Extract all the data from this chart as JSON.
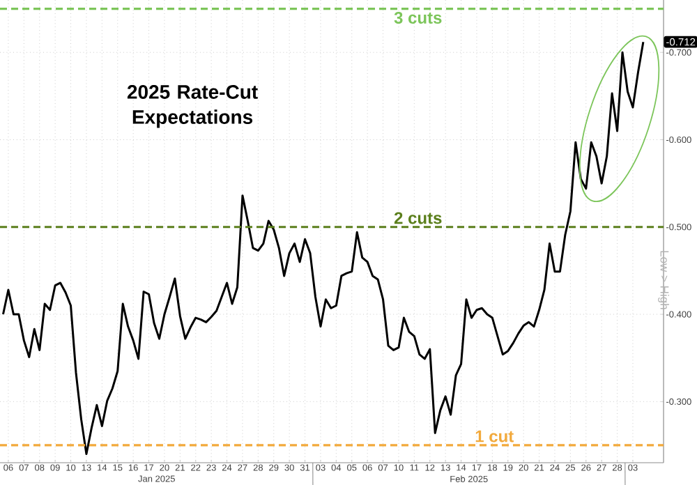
{
  "chart_data": {
    "type": "line",
    "title": "2025 Rate-Cut Expectations",
    "ylabel": "Low > High",
    "categories": [
      null,
      "06",
      null,
      null,
      "07",
      null,
      null,
      "08",
      null,
      null,
      "09",
      null,
      null,
      "10",
      null,
      null,
      "13",
      null,
      null,
      "14",
      null,
      null,
      "15",
      null,
      null,
      "16",
      null,
      null,
      "17",
      null,
      null,
      "20",
      null,
      null,
      "21",
      null,
      null,
      "22",
      null,
      null,
      "23",
      null,
      null,
      "24",
      null,
      null,
      "27",
      null,
      null,
      "28",
      null,
      null,
      "29",
      null,
      null,
      "30",
      null,
      null,
      "31",
      null,
      null,
      "03",
      null,
      null,
      "04",
      null,
      null,
      "05",
      null,
      null,
      "06",
      null,
      null,
      "07",
      null,
      null,
      "10",
      null,
      null,
      "11",
      null,
      null,
      "12",
      null,
      null,
      "13",
      null,
      null,
      "14",
      null,
      null,
      "17",
      null,
      null,
      "18",
      null,
      null,
      "19",
      null,
      null,
      "20",
      null,
      null,
      "21",
      null,
      null,
      "24",
      null,
      null,
      "25",
      null,
      null,
      "26",
      null,
      null,
      "27",
      null,
      null,
      "28",
      null,
      null,
      "03",
      null,
      null
    ],
    "series": [
      {
        "color": "#000000",
        "values": [
          -0.4,
          -0.428,
          -0.4,
          -0.4,
          -0.37,
          -0.351,
          -0.383,
          -0.359,
          -0.412,
          -0.405,
          -0.433,
          -0.436,
          -0.425,
          -0.41,
          -0.333,
          -0.28,
          -0.24,
          -0.27,
          -0.296,
          -0.272,
          -0.301,
          -0.315,
          -0.335,
          -0.412,
          -0.386,
          -0.37,
          -0.349,
          -0.426,
          -0.423,
          -0.39,
          -0.372,
          -0.4,
          -0.42,
          -0.441,
          -0.398,
          -0.372,
          -0.385,
          -0.396,
          -0.394,
          -0.391,
          -0.397,
          -0.404,
          -0.42,
          -0.436,
          -0.412,
          -0.431,
          -0.536,
          -0.507,
          -0.476,
          -0.473,
          -0.481,
          -0.507,
          -0.497,
          -0.476,
          -0.444,
          -0.47,
          -0.481,
          -0.46,
          -0.486,
          -0.47,
          -0.42,
          -0.386,
          -0.417,
          -0.407,
          -0.41,
          -0.444,
          -0.447,
          -0.449,
          -0.494,
          -0.465,
          -0.46,
          -0.444,
          -0.44,
          -0.417,
          -0.364,
          -0.359,
          -0.362,
          -0.396,
          -0.38,
          -0.375,
          -0.354,
          -0.349,
          -0.36,
          -0.264,
          -0.29,
          -0.306,
          -0.285,
          -0.33,
          -0.343,
          -0.417,
          -0.396,
          -0.405,
          -0.407,
          -0.4,
          -0.396,
          -0.375,
          -0.354,
          -0.358,
          -0.367,
          -0.378,
          -0.387,
          -0.391,
          -0.386,
          -0.405,
          -0.428,
          -0.481,
          -0.449,
          -0.449,
          -0.491,
          -0.518,
          -0.597,
          -0.555,
          -0.544,
          -0.597,
          -0.581,
          -0.55,
          -0.581,
          -0.653,
          -0.61,
          -0.7,
          -0.655,
          -0.637,
          -0.677,
          -0.712
        ]
      }
    ],
    "ylim": [
      -0.23,
      -0.76
    ],
    "yticks": [
      {
        "value": -0.3,
        "label": "-0.300"
      },
      {
        "value": -0.4,
        "label": "-0.400"
      },
      {
        "value": -0.5,
        "label": "-0.500"
      },
      {
        "value": -0.6,
        "label": "-0.600"
      },
      {
        "value": -0.7,
        "label": "-0.700"
      }
    ],
    "grid": true,
    "ref_lines": [
      {
        "axis": "y",
        "value": -0.75,
        "label": "3 cuts",
        "color": "#7cc55a",
        "line_style": "dashed"
      },
      {
        "axis": "y",
        "value": -0.5,
        "label": "2 cuts",
        "color": "#5b7f1c",
        "line_style": "dashed"
      },
      {
        "axis": "y",
        "value": -0.25,
        "label": "1 cut",
        "color": "#f2a93b",
        "line_style": "dashed"
      }
    ],
    "annotations": [
      "-0.712",
      "Jan 2025",
      "Feb 2025"
    ]
  }
}
